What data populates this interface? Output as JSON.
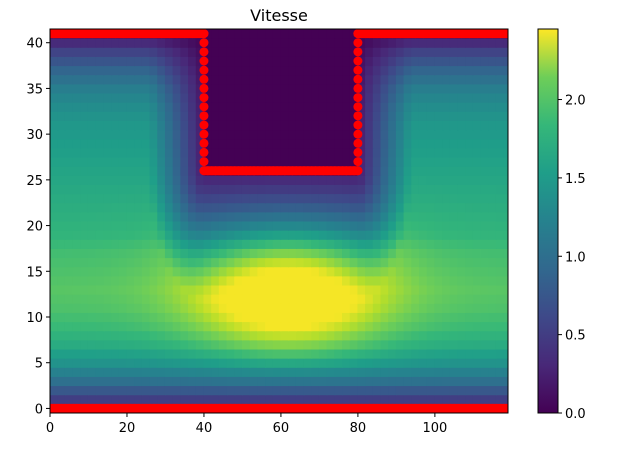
{
  "chart_data": {
    "type": "heatmap",
    "title": "Vitesse",
    "xlabel": "",
    "ylabel": "",
    "xlim": [
      0,
      119
    ],
    "ylim": [
      -0.5,
      41.5
    ],
    "x_ticks": [
      "0",
      "20",
      "40",
      "60",
      "80",
      "100"
    ],
    "y_ticks": [
      "0",
      "5",
      "10",
      "15",
      "20",
      "25",
      "30",
      "35",
      "40"
    ],
    "grid": false,
    "colormap": "viridis",
    "colorbar": {
      "min": 0.0,
      "max": 2.45,
      "ticks": [
        "0.0",
        "0.5",
        "1.0",
        "1.5",
        "2.0"
      ]
    },
    "obstacle": {
      "x_range": [
        40,
        80
      ],
      "y_range": [
        26,
        41
      ],
      "value": 0.0
    },
    "row_speeds": [
      {
        "y": 1,
        "speed": 0.45
      },
      {
        "y": 3,
        "speed": 0.9
      },
      {
        "y": 5,
        "speed": 1.25
      },
      {
        "y": 7,
        "speed": 1.5
      },
      {
        "y": 9,
        "speed": 1.65
      },
      {
        "y": 11,
        "speed": 1.75
      },
      {
        "y": 13,
        "speed": 1.8
      },
      {
        "y": 15,
        "speed": 1.75
      },
      {
        "y": 17,
        "speed": 1.7
      },
      {
        "y": 19,
        "speed": 1.6
      },
      {
        "y": 21,
        "speed": 1.55
      },
      {
        "y": 23,
        "speed": 1.5
      },
      {
        "y": 25,
        "speed": 1.45
      },
      {
        "y": 27,
        "speed": 1.4
      },
      {
        "y": 29,
        "speed": 1.35
      },
      {
        "y": 31,
        "speed": 1.3
      },
      {
        "y": 33,
        "speed": 1.2
      },
      {
        "y": 35,
        "speed": 1.05
      },
      {
        "y": 37,
        "speed": 0.8
      },
      {
        "y": 39,
        "speed": 0.5
      },
      {
        "y": 41,
        "speed": 0.1
      }
    ],
    "max_speed": 2.42,
    "max_region_center": {
      "x": 62,
      "y": 13
    },
    "boundary_markers": {
      "color": "#ff0000",
      "segments": [
        {
          "name": "bottom-wall",
          "points": [
            [
              0,
              0
            ],
            [
              119,
              0
            ]
          ]
        },
        {
          "name": "top-wall-left",
          "points": [
            [
              0,
              41
            ],
            [
              40,
              41
            ]
          ]
        },
        {
          "name": "top-wall-right",
          "points": [
            [
              80,
              41
            ],
            [
              119,
              41
            ]
          ]
        },
        {
          "name": "obstacle-left-edge",
          "points": [
            [
              40,
              26
            ],
            [
              40,
              41
            ]
          ]
        },
        {
          "name": "obstacle-right-edge",
          "points": [
            [
              80,
              26
            ],
            [
              80,
              41
            ]
          ]
        },
        {
          "name": "obstacle-bottom-edge",
          "points": [
            [
              40,
              26
            ],
            [
              80,
              26
            ]
          ]
        }
      ]
    }
  }
}
